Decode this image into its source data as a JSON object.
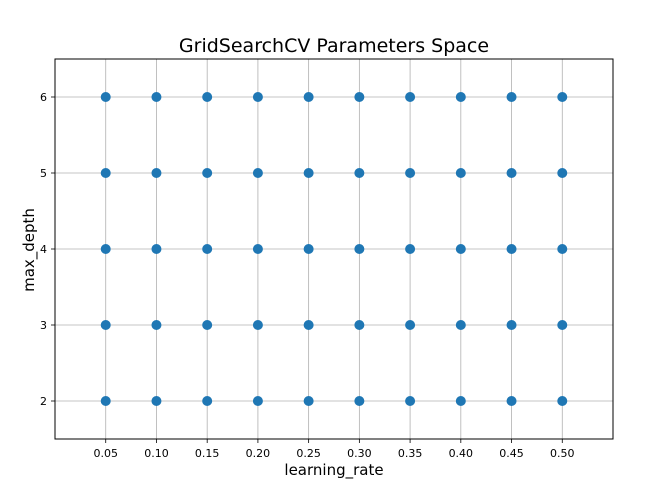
{
  "chart_data": {
    "type": "scatter",
    "title": "GridSearchCV Parameters Space",
    "xlabel": "learning_rate",
    "ylabel": "max_depth",
    "x_ticks": [
      "0.05",
      "0.10",
      "0.15",
      "0.20",
      "0.25",
      "0.30",
      "0.35",
      "0.40",
      "0.45",
      "0.50"
    ],
    "y_ticks": [
      "2",
      "3",
      "4",
      "5",
      "6"
    ],
    "xlim": [
      0.0,
      0.55
    ],
    "ylim": [
      1.5,
      6.5
    ],
    "grid": true,
    "marker_color": "#1f77b4",
    "series": [
      {
        "x": [
          0.05,
          0.1,
          0.15,
          0.2,
          0.25,
          0.3,
          0.35,
          0.4,
          0.45,
          0.5,
          0.05,
          0.1,
          0.15,
          0.2,
          0.25,
          0.3,
          0.35,
          0.4,
          0.45,
          0.5,
          0.05,
          0.1,
          0.15,
          0.2,
          0.25,
          0.3,
          0.35,
          0.4,
          0.45,
          0.5,
          0.05,
          0.1,
          0.15,
          0.2,
          0.25,
          0.3,
          0.35,
          0.4,
          0.45,
          0.5,
          0.05,
          0.1,
          0.15,
          0.2,
          0.25,
          0.3,
          0.35,
          0.4,
          0.45,
          0.5
        ],
        "y": [
          2,
          2,
          2,
          2,
          2,
          2,
          2,
          2,
          2,
          2,
          3,
          3,
          3,
          3,
          3,
          3,
          3,
          3,
          3,
          3,
          4,
          4,
          4,
          4,
          4,
          4,
          4,
          4,
          4,
          4,
          5,
          5,
          5,
          5,
          5,
          5,
          5,
          5,
          5,
          5,
          6,
          6,
          6,
          6,
          6,
          6,
          6,
          6,
          6,
          6
        ]
      }
    ]
  }
}
